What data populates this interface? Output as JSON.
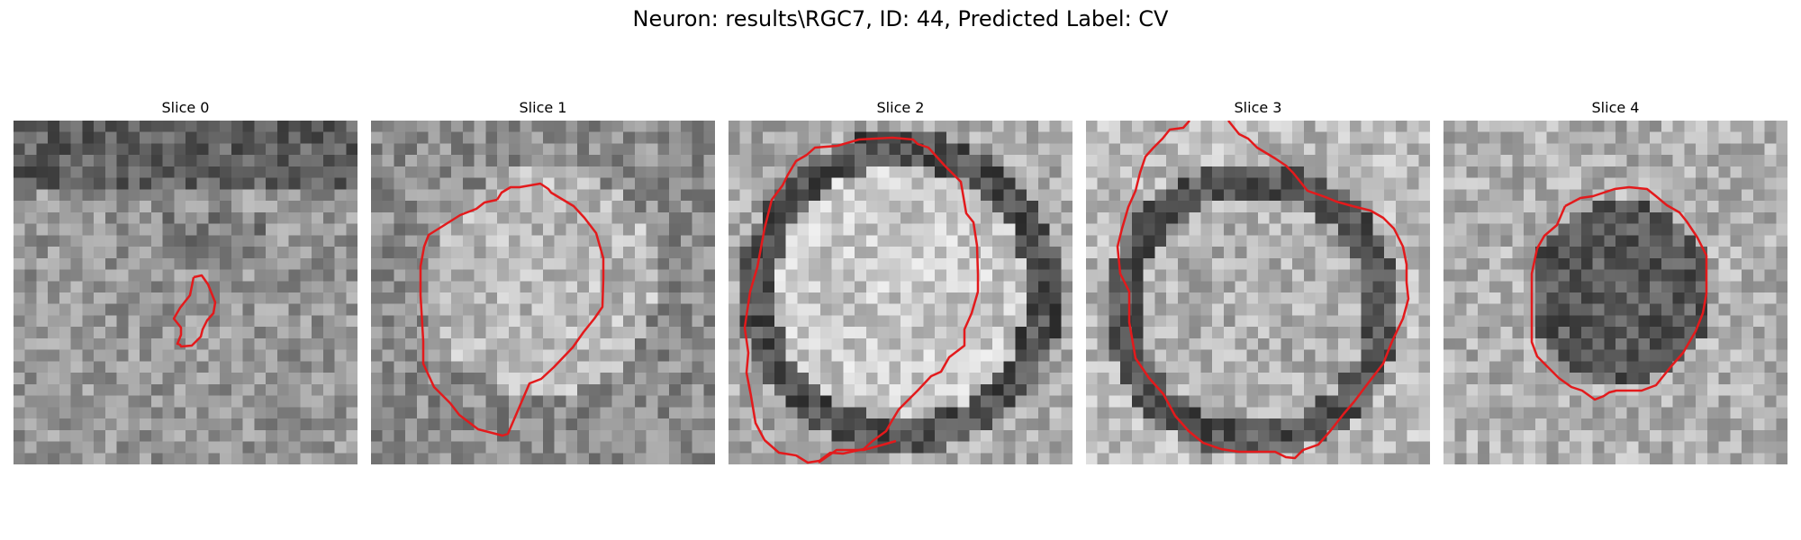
{
  "figure": {
    "title": "Neuron: results\\RGC7, ID: 44, Predicted Label: CV"
  },
  "panels": [
    {
      "title": "Slice 0",
      "contour_color": "#e31a1c"
    },
    {
      "title": "Slice 1",
      "contour_color": "#e31a1c"
    },
    {
      "title": "Slice 2",
      "contour_color": "#e31a1c"
    },
    {
      "title": "Slice 3",
      "contour_color": "#e31a1c"
    },
    {
      "title": "Slice 4",
      "contour_color": "#e31a1c"
    }
  ]
}
